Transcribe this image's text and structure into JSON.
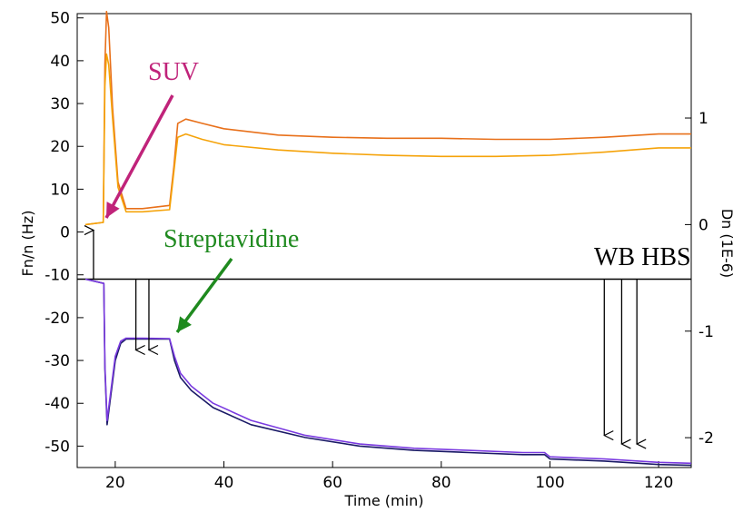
{
  "chart_data": {
    "type": "line",
    "xlabel": "Time (min)",
    "ylabel_left": "Fn/n (Hz)",
    "ylabel_right": "Dn (1E-6)",
    "xlim": [
      13,
      126
    ],
    "ylim_left": [
      -55,
      51
    ],
    "ylim_right": [
      -2.28,
      1.98
    ],
    "x_ticks": [
      20,
      40,
      60,
      80,
      100,
      120
    ],
    "y_ticks_left": [
      50,
      40,
      30,
      20,
      10,
      0,
      -10,
      -20,
      -30,
      -40,
      -50
    ],
    "y_ticks_right": [
      1,
      0,
      -1,
      -2
    ],
    "annotations": [
      {
        "text": "SUV",
        "color": "#c0237a"
      },
      {
        "text": "Streptavidine",
        "color": "#1f8a1f"
      },
      {
        "text": "WB HBS",
        "color": "#000000"
      }
    ],
    "arrow_times": [
      16,
      23.8,
      26.2,
      110,
      113.2,
      116
    ],
    "series": [
      {
        "axis": "right",
        "color": "#e8701a",
        "x": [
          14.5,
          17.8,
          18.1,
          18.4,
          18.8,
          19.5,
          20.5,
          22,
          25,
          30,
          30.8,
          31.5,
          33,
          36,
          40,
          50,
          60,
          70,
          80,
          90,
          100,
          110,
          120,
          126
        ],
        "y": [
          0,
          0.02,
          1.5,
          2.0,
          1.85,
          1.1,
          0.4,
          0.15,
          0.15,
          0.18,
          0.55,
          0.95,
          0.99,
          0.95,
          0.9,
          0.84,
          0.82,
          0.81,
          0.81,
          0.8,
          0.8,
          0.82,
          0.85,
          0.85
        ]
      },
      {
        "axis": "right",
        "color": "#f5a30a",
        "x": [
          14.5,
          17.8,
          18.1,
          18.4,
          18.8,
          19.5,
          20.5,
          22,
          25,
          30,
          30.8,
          31.5,
          33,
          36,
          40,
          50,
          60,
          70,
          80,
          90,
          100,
          110,
          120,
          126
        ],
        "y": [
          0,
          0.02,
          1.3,
          1.6,
          1.5,
          1.0,
          0.35,
          0.12,
          0.12,
          0.14,
          0.5,
          0.82,
          0.85,
          0.8,
          0.75,
          0.7,
          0.67,
          0.65,
          0.64,
          0.64,
          0.65,
          0.68,
          0.72,
          0.72
        ]
      },
      {
        "axis": "left",
        "color": "#1a1a66",
        "x": [
          14.5,
          17.9,
          18.1,
          18.5,
          19,
          20,
          21,
          22,
          25,
          30,
          30.9,
          32,
          34,
          38,
          45,
          55,
          65,
          75,
          85,
          95,
          99,
          100,
          110,
          120,
          126
        ],
        "y": [
          -11,
          -12,
          -32,
          -45,
          -40,
          -30,
          -26,
          -25,
          -25,
          -25,
          -30,
          -34,
          -37,
          -41,
          -45,
          -48,
          -50,
          -51,
          -51.5,
          -52,
          -52,
          -53,
          -53.5,
          -54.3,
          -54.5
        ]
      },
      {
        "axis": "left",
        "color": "#7a3ae0",
        "x": [
          14.5,
          17.9,
          18.1,
          18.5,
          19,
          20,
          21,
          22,
          25,
          30,
          30.9,
          32,
          34,
          38,
          45,
          55,
          65,
          75,
          85,
          95,
          99,
          100,
          110,
          120,
          126
        ],
        "y": [
          -11,
          -12,
          -31,
          -44,
          -39,
          -29,
          -25.5,
          -24.8,
          -24.8,
          -24.9,
          -29,
          -33,
          -36,
          -40,
          -44,
          -47.5,
          -49.5,
          -50.5,
          -51,
          -51.5,
          -51.5,
          -52.5,
          -53,
          -53.8,
          -54
        ]
      }
    ]
  }
}
